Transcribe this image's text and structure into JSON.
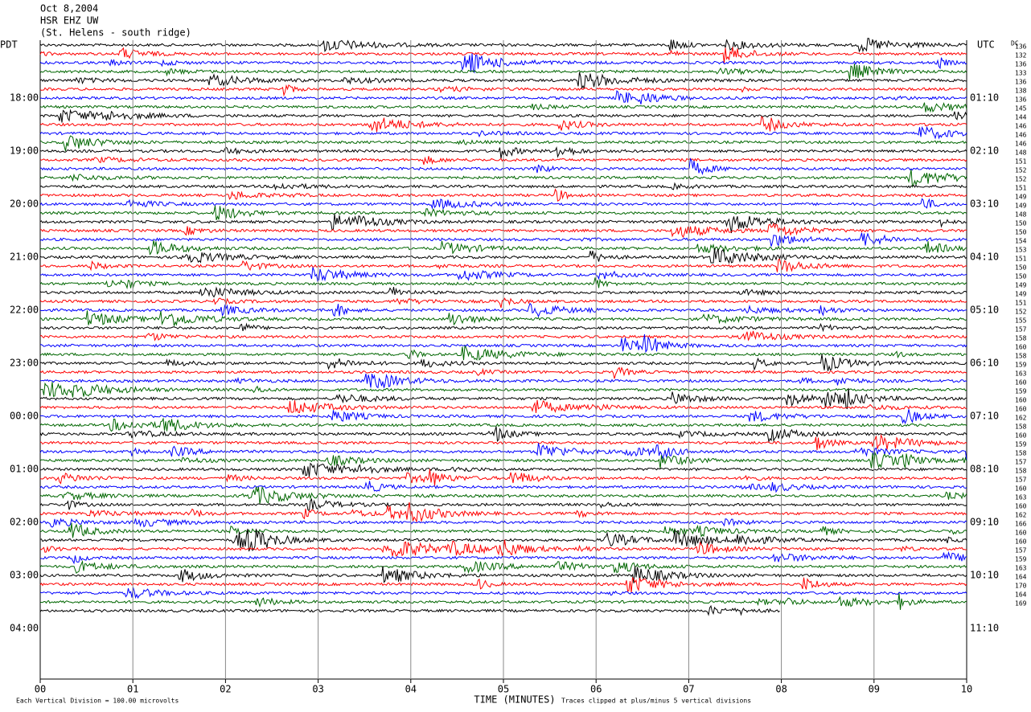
{
  "header": {
    "date": "Oct 8,2004",
    "station": "HSR EHZ UW",
    "location": "(St. Helens - south ridge)"
  },
  "left_zone": "PDT",
  "right_zone": "UTC",
  "dc_label": "DC",
  "left_hours": [
    "18:00",
    "19:00",
    "20:00",
    "21:00",
    "22:00",
    "23:00",
    "00:00",
    "01:00",
    "02:00",
    "03:00",
    "04:00"
  ],
  "right_hours": [
    "01:10",
    "02:10",
    "03:10",
    "04:10",
    "05:10",
    "06:10",
    "07:10",
    "08:10",
    "09:10",
    "10:10",
    "11:10"
  ],
  "dc_offsets": [
    136,
    132,
    136,
    133,
    136,
    138,
    136,
    145,
    144,
    146,
    146,
    146,
    148,
    151,
    152,
    152,
    151,
    149,
    149,
    148,
    150,
    150,
    154,
    153,
    151,
    150,
    150,
    149,
    149,
    151,
    152,
    155,
    157,
    158,
    160,
    158,
    159,
    163,
    160,
    159,
    160,
    160,
    162,
    158,
    160,
    159,
    158,
    157,
    158,
    157,
    160,
    163,
    160,
    162,
    166,
    160,
    160,
    157,
    159,
    163,
    164,
    170,
    164,
    169
  ],
  "x_ticks": [
    "00",
    "01",
    "02",
    "03",
    "04",
    "05",
    "06",
    "07",
    "08",
    "09",
    "10"
  ],
  "x_axis_label": "TIME (MINUTES)",
  "scale_note": "Each Vertical Division =  100.00 microvolts",
  "clip_note": "Traces clipped at plus/minus 5 vertical divisions",
  "trace_colors": [
    "#000000",
    "#ff0000",
    "#0000ff",
    "#006600"
  ]
}
